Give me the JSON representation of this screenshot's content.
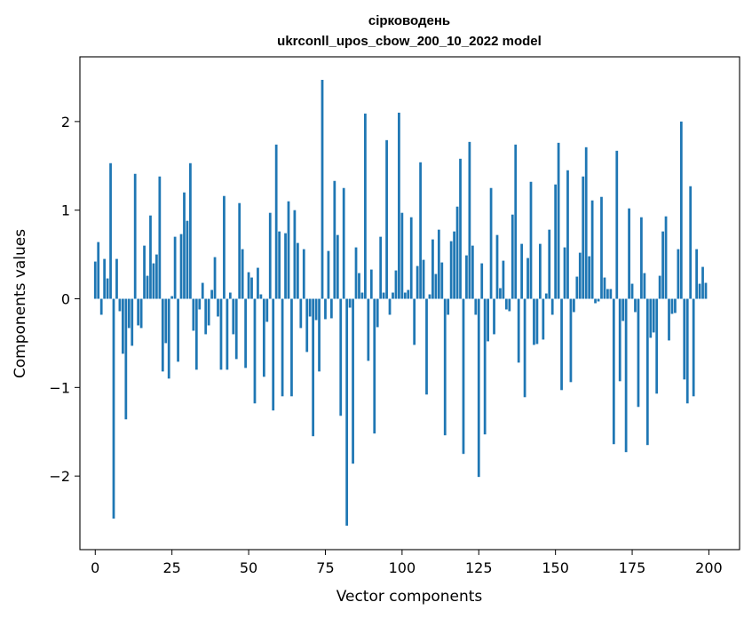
{
  "chart_data": {
    "type": "bar",
    "title": "сірководень",
    "subtitle": "ukrconll_upos_cbow_200_10_2022 model",
    "xlabel": "Vector components",
    "ylabel": "Components values",
    "xlim": [
      -5,
      210
    ],
    "ylim": [
      -2.83,
      2.73
    ],
    "xticks": [
      0,
      25,
      50,
      75,
      100,
      125,
      150,
      175,
      200
    ],
    "yticks": [
      -2,
      -1,
      0,
      1,
      2
    ],
    "ytick_labels": [
      "−2",
      "−1",
      "0",
      "1",
      "2"
    ],
    "bar_color": "#1f77b4",
    "grid": false,
    "values": [
      0.42,
      0.64,
      -0.18,
      0.45,
      0.23,
      1.53,
      -2.48,
      0.45,
      -0.14,
      -0.62,
      -1.36,
      -0.33,
      -0.53,
      1.41,
      -0.3,
      -0.33,
      0.6,
      0.26,
      0.94,
      0.4,
      0.5,
      1.38,
      -0.82,
      -0.5,
      -0.9,
      0.03,
      0.7,
      -0.71,
      0.73,
      1.2,
      0.88,
      1.53,
      -0.36,
      -0.8,
      -0.12,
      0.18,
      -0.4,
      -0.3,
      0.1,
      0.47,
      -0.2,
      -0.8,
      1.16,
      -0.8,
      0.07,
      -0.4,
      -0.68,
      1.08,
      0.56,
      -0.78,
      0.3,
      0.24,
      -1.18,
      0.35,
      0.05,
      -0.88,
      -0.26,
      0.97,
      -1.26,
      1.74,
      0.76,
      -1.1,
      0.74,
      1.1,
      -1.1,
      1.0,
      0.63,
      -0.33,
      0.56,
      -0.6,
      -0.2,
      -1.55,
      -0.24,
      -0.82,
      2.47,
      -0.23,
      0.54,
      -0.22,
      1.33,
      0.72,
      -1.32,
      1.25,
      -2.56,
      -0.1,
      -1.86,
      0.58,
      0.29,
      0.07,
      2.09,
      -0.7,
      0.33,
      -1.52,
      -0.32,
      0.7,
      0.07,
      1.79,
      -0.18,
      0.07,
      0.32,
      2.1,
      0.97,
      0.07,
      0.1,
      0.92,
      -0.52,
      0.37,
      1.54,
      0.44,
      -1.08,
      0.05,
      0.67,
      0.28,
      0.78,
      0.41,
      -1.54,
      -0.18,
      0.65,
      0.76,
      1.04,
      1.58,
      -1.75,
      0.49,
      1.77,
      0.6,
      -0.18,
      -2.01,
      0.4,
      -1.53,
      -0.48,
      1.25,
      -0.4,
      0.72,
      0.12,
      0.43,
      -0.12,
      -0.14,
      0.95,
      1.74,
      -0.72,
      0.62,
      -1.11,
      0.46,
      1.32,
      -0.52,
      -0.51,
      0.62,
      -0.46,
      0.06,
      0.78,
      -0.18,
      1.29,
      1.76,
      -1.03,
      0.58,
      1.45,
      -0.94,
      -0.15,
      0.25,
      0.52,
      1.38,
      1.71,
      0.48,
      1.11,
      -0.05,
      -0.03,
      1.15,
      0.24,
      0.11,
      0.11,
      -1.64,
      1.67,
      -0.93,
      -0.25,
      -1.73,
      1.02,
      0.17,
      -0.15,
      -1.22,
      0.92,
      0.29,
      -1.65,
      -0.44,
      -0.38,
      -1.07,
      0.26,
      0.76,
      0.93,
      -0.47,
      -0.17,
      -0.16,
      0.56,
      2.0,
      -0.91,
      -1.18,
      1.27,
      -1.1,
      0.56,
      0.17,
      0.36,
      0.18
    ]
  }
}
